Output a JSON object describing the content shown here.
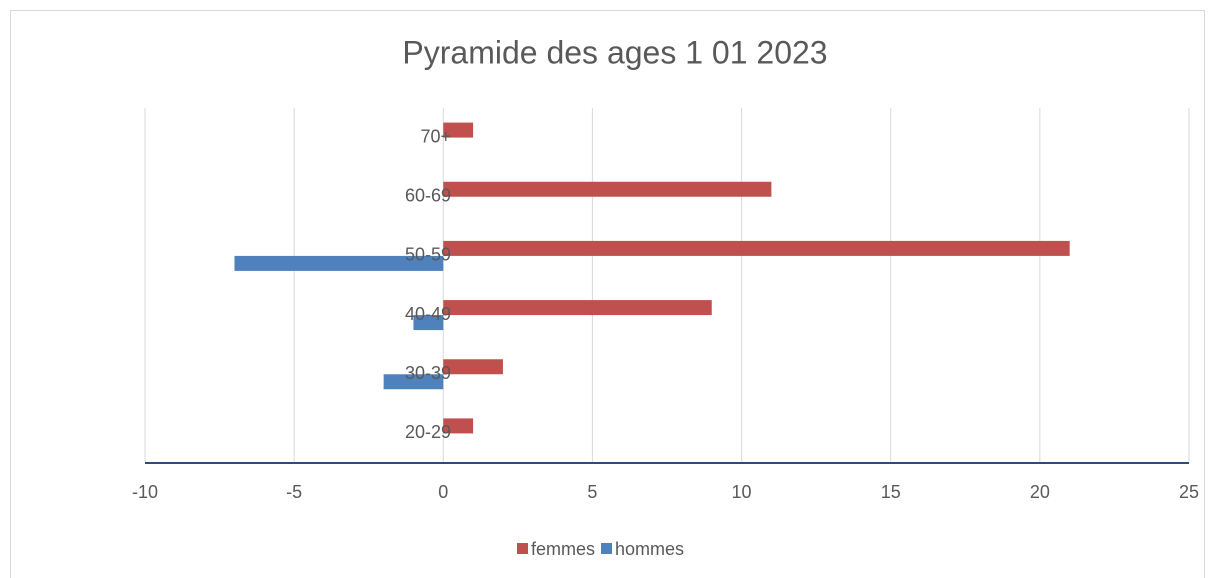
{
  "chart_data": {
    "type": "bar",
    "orientation": "horizontal",
    "title": "Pyramide des ages 1 01 2023",
    "categories": [
      "20-29",
      "30-39",
      "40-49",
      "50-59",
      "60-69",
      "70+"
    ],
    "series": [
      {
        "name": "femmes",
        "color": "#c0504d",
        "values": [
          1,
          2,
          9,
          21,
          11,
          1
        ]
      },
      {
        "name": "hommes",
        "color": "#4f81bd",
        "values": [
          0,
          -2,
          -1,
          -7,
          0,
          0
        ]
      }
    ],
    "xlim": [
      -10,
      25
    ],
    "xticks": [
      -10,
      -5,
      0,
      5,
      10,
      15,
      20,
      25
    ],
    "grid": true,
    "legend": "bottom"
  }
}
